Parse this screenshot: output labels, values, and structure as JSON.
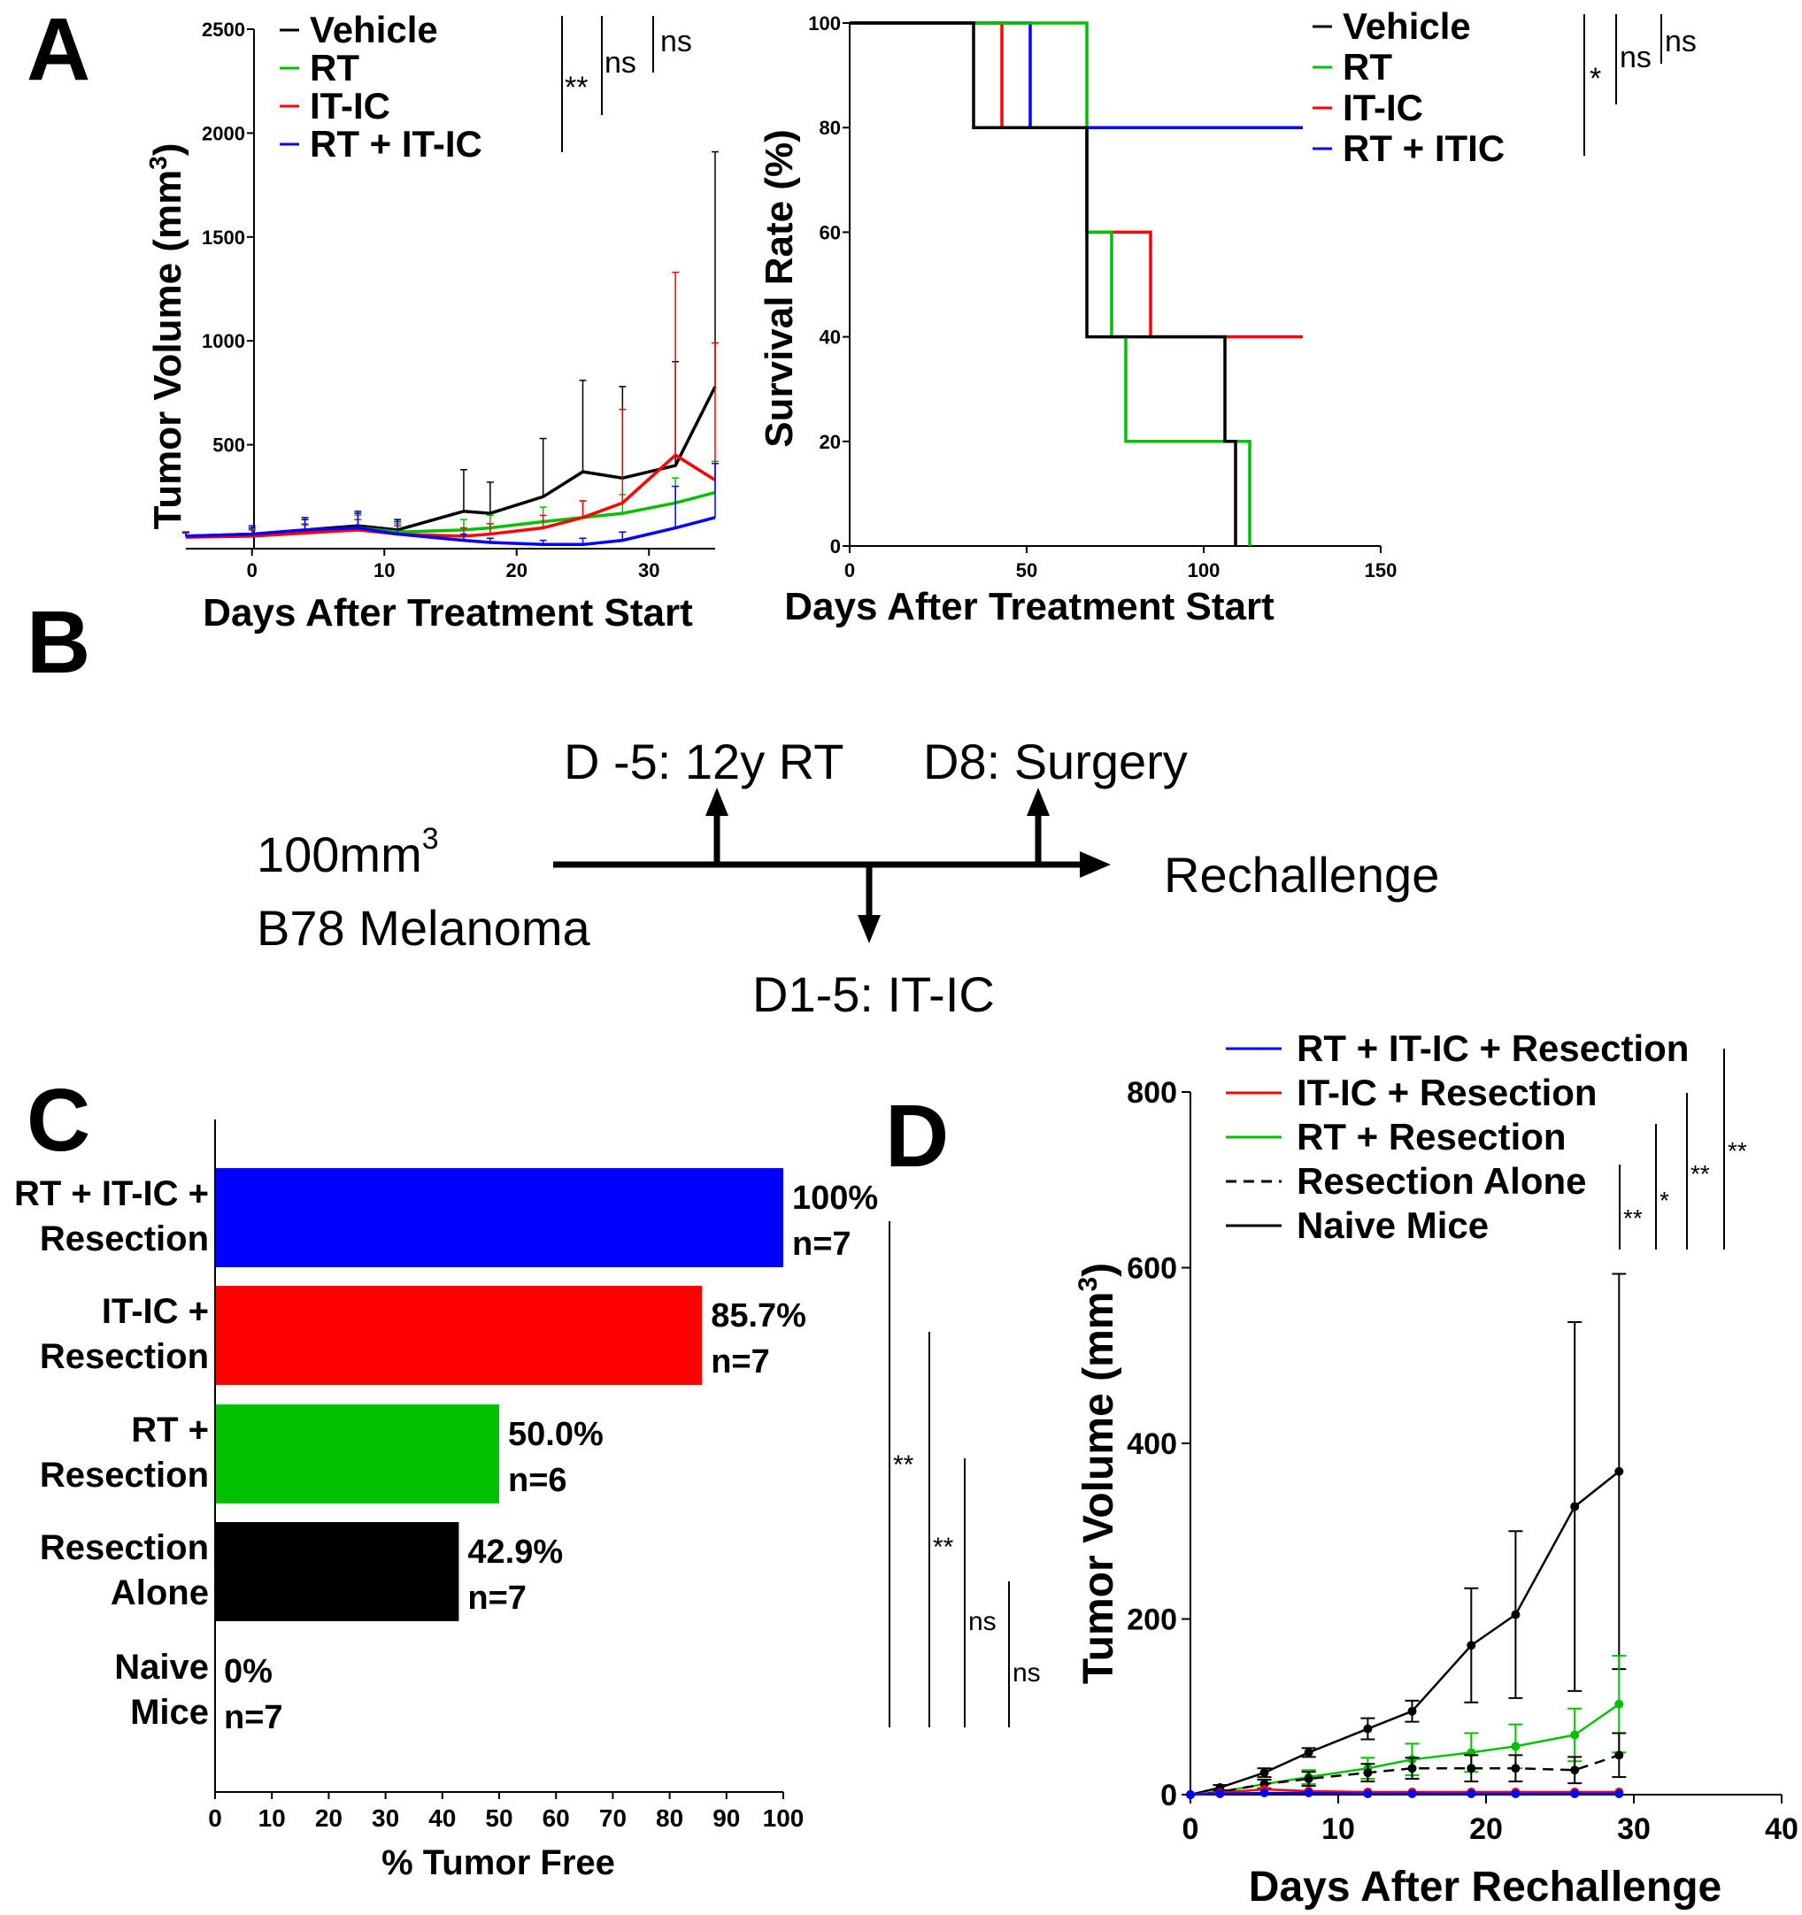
{
  "panels": {
    "a": "A",
    "b": "B",
    "c": "C",
    "d": "D"
  },
  "chart_data": [
    {
      "id": "A1",
      "type": "line",
      "xlabel": "Days After Treatment Start",
      "ylabel_main": "Tumor Volume (mm",
      "ylabel_sup": "3",
      "ylabel_end": ")",
      "xlim": [
        -5,
        35
      ],
      "ylim": [
        0,
        2500
      ],
      "x_ticks": [
        "0",
        "10",
        "20",
        "30"
      ],
      "x_tick_values": [
        0,
        10,
        20,
        30
      ],
      "y_ticks": [
        "500",
        "1000",
        "1500",
        "2000",
        "2500"
      ],
      "y_tick_values": [
        500,
        1000,
        1500,
        2000,
        2500
      ],
      "legend": [
        "Vehicle",
        "RT",
        "IT-IC",
        "RT + IT-IC"
      ],
      "sig_labels": [
        "**",
        "ns",
        "ns"
      ],
      "series": [
        {
          "name": "Vehicle",
          "color": "#000000",
          "x": [
            -5,
            0,
            4,
            8,
            11,
            16,
            18,
            22,
            25,
            28,
            32,
            35
          ],
          "y": [
            60,
            70,
            90,
            110,
            90,
            180,
            170,
            250,
            370,
            340,
            400,
            780
          ],
          "err": [
            20,
            30,
            50,
            60,
            50,
            200,
            150,
            280,
            440,
            440,
            500,
            1130
          ]
        },
        {
          "name": "RT",
          "color": "#00c000",
          "x": [
            -5,
            0,
            4,
            8,
            11,
            16,
            18,
            22,
            25,
            28,
            32,
            35
          ],
          "y": [
            60,
            65,
            80,
            100,
            80,
            90,
            100,
            130,
            150,
            170,
            220,
            270
          ],
          "err": [
            20,
            30,
            40,
            60,
            40,
            50,
            60,
            70,
            80,
            90,
            120,
            150
          ]
        },
        {
          "name": "IT-IC",
          "color": "#ff0000",
          "x": [
            -5,
            0,
            4,
            8,
            11,
            16,
            18,
            22,
            25,
            28,
            32,
            35
          ],
          "y": [
            55,
            60,
            75,
            90,
            70,
            60,
            70,
            100,
            150,
            220,
            450,
            330
          ],
          "err": [
            20,
            30,
            40,
            50,
            40,
            40,
            50,
            60,
            80,
            450,
            880,
            660
          ]
        },
        {
          "name": "RT + IT-IC",
          "color": "#0000ff",
          "x": [
            -5,
            0,
            4,
            8,
            11,
            16,
            18,
            22,
            25,
            28,
            32,
            35
          ],
          "y": [
            60,
            70,
            90,
            100,
            70,
            40,
            30,
            20,
            20,
            40,
            100,
            150
          ],
          "err": [
            20,
            40,
            60,
            80,
            60,
            30,
            20,
            20,
            30,
            40,
            200,
            260
          ]
        }
      ]
    },
    {
      "id": "A2",
      "type": "line",
      "xlabel": "Days After Treatment Start",
      "ylabel": "Survival Rate (%)",
      "xlim": [
        0,
        150
      ],
      "ylim": [
        0,
        100
      ],
      "x_ticks": [
        "0",
        "50",
        "100",
        "150"
      ],
      "x_tick_values": [
        0,
        50,
        100,
        150
      ],
      "y_ticks": [
        "0",
        "20",
        "40",
        "60",
        "80",
        "100"
      ],
      "y_tick_values": [
        0,
        20,
        40,
        60,
        80,
        100
      ],
      "legend": [
        "Vehicle",
        "RT",
        "IT-IC",
        "RT + ITIC"
      ],
      "sig_labels": [
        "*",
        "ns",
        "ns"
      ],
      "series": [
        {
          "name": "RT + ITIC",
          "color": "#0000ff",
          "x": [
            0,
            51,
            51,
            128
          ],
          "y": [
            100,
            100,
            80,
            80
          ]
        },
        {
          "name": "IT-IC",
          "color": "#ff0000",
          "x": [
            0,
            43,
            43,
            67,
            67,
            85,
            85,
            128
          ],
          "y": [
            100,
            100,
            80,
            80,
            60,
            60,
            40,
            40
          ]
        },
        {
          "name": "RT",
          "color": "#00c000",
          "x": [
            0,
            67,
            67,
            74,
            74,
            78,
            78,
            113,
            113
          ],
          "y": [
            100,
            100,
            60,
            60,
            40,
            40,
            20,
            20,
            0
          ]
        },
        {
          "name": "Vehicle",
          "color": "#000000",
          "x": [
            0,
            35,
            35,
            67,
            67,
            106,
            106,
            109,
            109
          ],
          "y": [
            100,
            100,
            80,
            80,
            40,
            40,
            20,
            20,
            0
          ]
        }
      ]
    },
    {
      "id": "C",
      "type": "bar",
      "orientation": "horizontal",
      "xlabel": "% Tumor Free",
      "xlim": [
        0,
        100
      ],
      "x_ticks": [
        "0",
        "10",
        "20",
        "30",
        "40",
        "50",
        "60",
        "70",
        "80",
        "90",
        "100"
      ],
      "x_tick_values": [
        0,
        10,
        20,
        30,
        40,
        50,
        60,
        70,
        80,
        90,
        100
      ],
      "categories": [
        [
          "RT + IT-IC +",
          "Resection"
        ],
        [
          "IT-IC +",
          "Resection"
        ],
        [
          "RT +",
          "Resection"
        ],
        [
          "Resection",
          "Alone"
        ],
        [
          "Naive",
          "Mice"
        ]
      ],
      "values": [
        100,
        85.7,
        50.0,
        42.9,
        0
      ],
      "value_labels": [
        "100%",
        "85.7%",
        "50.0%",
        "42.9%",
        "0%"
      ],
      "n_labels": [
        "n=7",
        "n=7",
        "n=6",
        "n=7",
        "n=7"
      ],
      "colors": [
        "#0000ff",
        "#ff0000",
        "#00c000",
        "#000000",
        "#ffffff"
      ],
      "sig_labels": [
        "**",
        "**",
        "ns",
        "ns"
      ]
    },
    {
      "id": "D",
      "type": "line",
      "xlabel": "Days After Rechallenge",
      "ylabel_main": "Tumor Volume (mm",
      "ylabel_sup": "3",
      "ylabel_end": ")",
      "xlim": [
        0,
        40
      ],
      "ylim": [
        0,
        800
      ],
      "x_ticks": [
        "0",
        "10",
        "20",
        "30",
        "40"
      ],
      "x_tick_values": [
        0,
        10,
        20,
        30,
        40
      ],
      "y_ticks": [
        "0",
        "200",
        "400",
        "600",
        "800"
      ],
      "y_tick_values": [
        0,
        200,
        400,
        600,
        800
      ],
      "legend": [
        "RT + IT-IC + Resection",
        "IT-IC + Resection",
        "RT + Resection",
        "Resection Alone",
        "Naive Mice"
      ],
      "sig_labels": [
        "**",
        "*",
        "**",
        "**"
      ],
      "series": [
        {
          "name": "Naive Mice",
          "color": "#000000",
          "dash": false,
          "x": [
            0,
            2,
            5,
            8,
            12,
            15,
            19,
            22,
            26,
            29
          ],
          "y": [
            0,
            8,
            25,
            48,
            75,
            95,
            170,
            205,
            328,
            368
          ],
          "err": [
            0,
            3,
            5,
            5,
            12,
            12,
            65,
            95,
            210,
            225
          ]
        },
        {
          "name": "RT + Resection",
          "color": "#00c000",
          "dash": false,
          "x": [
            0,
            2,
            5,
            8,
            12,
            15,
            19,
            22,
            26,
            29
          ],
          "y": [
            0,
            3,
            12,
            20,
            30,
            40,
            48,
            55,
            68,
            103
          ],
          "err": [
            0,
            2,
            5,
            8,
            12,
            18,
            22,
            25,
            30,
            55
          ]
        },
        {
          "name": "Resection Alone",
          "color": "#000000",
          "dash": true,
          "x": [
            0,
            2,
            5,
            8,
            12,
            15,
            19,
            22,
            26,
            29
          ],
          "y": [
            0,
            3,
            12,
            18,
            25,
            30,
            30,
            30,
            28,
            45
          ],
          "err": [
            0,
            2,
            5,
            8,
            10,
            12,
            15,
            15,
            15,
            25
          ]
        },
        {
          "name": "IT-IC + Resection",
          "color": "#ff0000",
          "dash": false,
          "x": [
            0,
            2,
            5,
            8,
            12,
            15,
            19,
            22,
            26,
            29
          ],
          "y": [
            0,
            2,
            6,
            4,
            3,
            3,
            3,
            3,
            3,
            3
          ],
          "err": [
            0,
            0,
            0,
            0,
            0,
            0,
            0,
            0,
            0,
            0
          ]
        },
        {
          "name": "RT + IT-IC + Resection",
          "color": "#0000ff",
          "dash": false,
          "x": [
            0,
            2,
            5,
            8,
            12,
            15,
            19,
            22,
            26,
            29
          ],
          "y": [
            0,
            1,
            2,
            2,
            1,
            1,
            1,
            1,
            1,
            1
          ],
          "err": [
            0,
            0,
            0,
            0,
            0,
            0,
            0,
            0,
            0,
            0
          ]
        }
      ]
    }
  ],
  "schematic": {
    "start_line1_main": "100mm",
    "start_line1_sup": "3",
    "start_line2": "B78 Melanoma",
    "event_rt": "D -5: 12y RT",
    "event_surgery": "D8: Surgery",
    "event_itic": "D1-5: IT-IC",
    "end_label": "Rechallenge"
  }
}
